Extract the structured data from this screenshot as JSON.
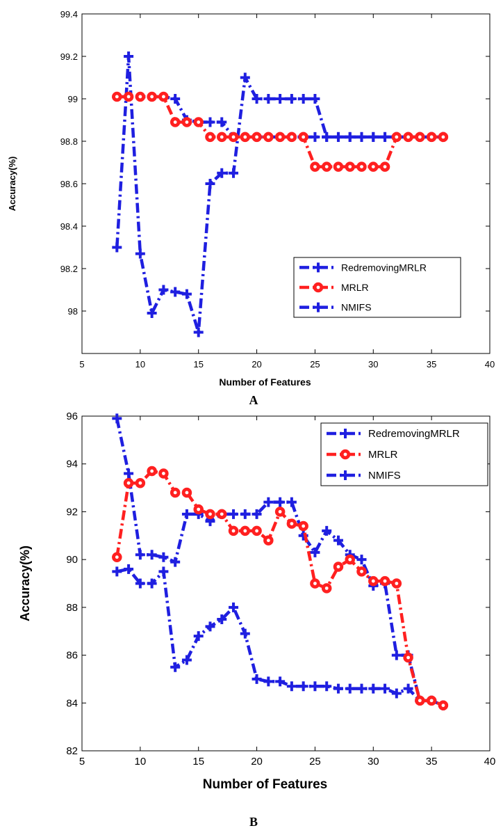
{
  "chart_data": [
    {
      "type": "line",
      "panel_label": "A",
      "xlabel": "Number of Features",
      "ylabel": "Accuracy(%)",
      "xlim": [
        5,
        40
      ],
      "ylim": [
        97.8,
        99.4
      ],
      "xticks": [
        5,
        10,
        15,
        20,
        25,
        30,
        35,
        40
      ],
      "yticks": [
        98,
        98.2,
        98.4,
        98.6,
        98.8,
        99,
        99.2,
        99.4
      ],
      "ytick_labels": [
        "98",
        "98.2",
        "98.4",
        "98.6",
        "98.8",
        "99",
        "99.2",
        "99.4"
      ],
      "grid": false,
      "legend_position": "bottom-right",
      "series": [
        {
          "name": "RedremovingMRLR",
          "color": "#1f1fe0",
          "marker": "plus",
          "line_style": "dash-dot",
          "x": [
            8,
            9,
            10,
            11,
            12,
            13,
            14,
            15,
            16,
            17,
            18,
            19,
            20,
            21,
            22,
            23,
            24,
            25,
            26,
            27,
            28,
            29,
            30,
            31,
            32,
            33,
            34,
            35,
            36
          ],
          "y": [
            99.01,
            99.01,
            99.01,
            99.01,
            99.01,
            99.0,
            98.9,
            98.89,
            98.89,
            98.89,
            98.82,
            98.82,
            98.82,
            98.82,
            98.82,
            98.82,
            98.82,
            98.82,
            98.82,
            98.82,
            98.82,
            98.82,
            98.82,
            98.82,
            98.82,
            98.82,
            98.82,
            98.82,
            98.82
          ]
        },
        {
          "name": "MRLR",
          "color": "#ff2020",
          "marker": "circle",
          "line_style": "dash-dot",
          "x": [
            8,
            9,
            10,
            11,
            12,
            13,
            14,
            15,
            16,
            17,
            18,
            19,
            20,
            21,
            22,
            23,
            24,
            25,
            26,
            27,
            28,
            29,
            30,
            31,
            32,
            33,
            34,
            35,
            36
          ],
          "y": [
            99.01,
            99.01,
            99.01,
            99.01,
            99.01,
            98.89,
            98.89,
            98.89,
            98.82,
            98.82,
            98.82,
            98.82,
            98.82,
            98.82,
            98.82,
            98.82,
            98.82,
            98.68,
            98.68,
            98.68,
            98.68,
            98.68,
            98.68,
            98.68,
            98.82,
            98.82,
            98.82,
            98.82,
            98.82
          ]
        },
        {
          "name": "NMIFS",
          "color": "#1f1fe0",
          "marker": "plus",
          "line_style": "dash-dot",
          "x": [
            8,
            9,
            10,
            11,
            12,
            13,
            14,
            15,
            16,
            17,
            18,
            19,
            20,
            21,
            22,
            23,
            24,
            25,
            26,
            27,
            28,
            29,
            30,
            31,
            32,
            33,
            34,
            35,
            36
          ],
          "y": [
            98.3,
            99.2,
            98.27,
            97.99,
            98.1,
            98.09,
            98.08,
            97.9,
            98.6,
            98.65,
            98.65,
            99.1,
            99.0,
            99.0,
            99.0,
            99.0,
            99.0,
            99.0,
            98.82,
            98.82,
            98.82,
            98.82,
            98.82,
            98.82,
            98.82,
            98.82,
            98.82,
            98.82,
            98.82
          ]
        }
      ]
    },
    {
      "type": "line",
      "panel_label": "B",
      "xlabel": "Number of Features",
      "ylabel": "Accuracy(%)",
      "xlim": [
        5,
        40
      ],
      "ylim": [
        82,
        96
      ],
      "xticks": [
        5,
        10,
        15,
        20,
        25,
        30,
        35,
        40
      ],
      "yticks": [
        82,
        84,
        86,
        88,
        90,
        92,
        94,
        96
      ],
      "ytick_labels": [
        "82",
        "84",
        "86",
        "88",
        "90",
        "92",
        "94",
        "96"
      ],
      "grid": false,
      "legend_position": "top-right",
      "series": [
        {
          "name": "RedremovingMRLR",
          "color": "#1f1fe0",
          "marker": "plus",
          "line_style": "dash-dot",
          "x": [
            8,
            9,
            10,
            11,
            12,
            13,
            14,
            15,
            16,
            17,
            18,
            19,
            20,
            21,
            22,
            23,
            24,
            25,
            26,
            27,
            28,
            29,
            30,
            31,
            32,
            33,
            34,
            35,
            36
          ],
          "y": [
            95.9,
            93.6,
            90.2,
            90.2,
            90.1,
            89.9,
            91.9,
            91.9,
            91.6,
            91.9,
            91.9,
            91.9,
            91.9,
            92.4,
            92.4,
            92.4,
            91.0,
            90.3,
            91.2,
            90.8,
            90.2,
            90.0,
            88.9,
            89.0,
            86.0,
            86.0,
            84.1,
            84.1,
            83.9
          ]
        },
        {
          "name": "MRLR",
          "color": "#ff2020",
          "marker": "circle",
          "line_style": "dash-dot",
          "x": [
            8,
            9,
            10,
            11,
            12,
            13,
            14,
            15,
            16,
            17,
            18,
            19,
            20,
            21,
            22,
            23,
            24,
            25,
            26,
            27,
            28,
            29,
            30,
            31,
            32,
            33,
            34,
            35,
            36
          ],
          "y": [
            90.1,
            93.2,
            93.2,
            93.7,
            93.6,
            92.8,
            92.8,
            92.1,
            91.9,
            91.9,
            91.2,
            91.2,
            91.2,
            90.8,
            92.0,
            91.5,
            91.4,
            89.0,
            88.8,
            89.7,
            90.0,
            89.5,
            89.1,
            89.1,
            89.0,
            85.9,
            84.1,
            84.1,
            83.9
          ]
        },
        {
          "name": "NMIFS",
          "color": "#1f1fe0",
          "marker": "plus",
          "line_style": "dash-dot",
          "x": [
            8,
            9,
            10,
            11,
            12,
            13,
            14,
            15,
            16,
            17,
            18,
            19,
            20,
            21,
            22,
            23,
            24,
            25,
            26,
            27,
            28,
            29,
            30,
            31,
            32,
            33,
            34,
            35,
            36
          ],
          "y": [
            89.5,
            89.6,
            89.0,
            89.0,
            89.5,
            85.5,
            85.8,
            86.8,
            87.2,
            87.5,
            88.0,
            86.9,
            85.0,
            84.9,
            84.9,
            84.7,
            84.7,
            84.7,
            84.7,
            84.6,
            84.6,
            84.6,
            84.6,
            84.6,
            84.4,
            84.6,
            84.1,
            84.1,
            83.9
          ]
        }
      ]
    }
  ]
}
